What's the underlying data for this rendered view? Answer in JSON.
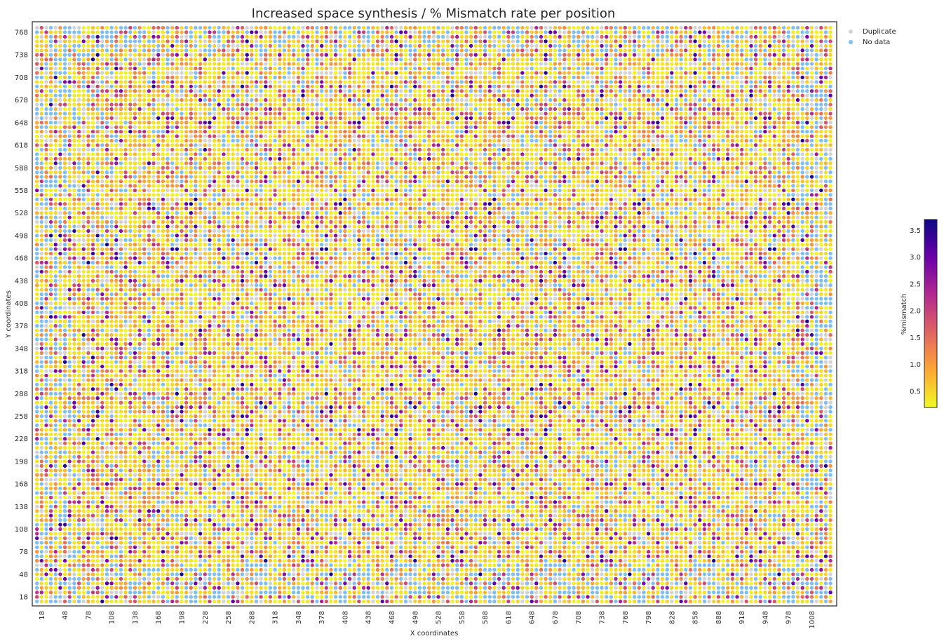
{
  "chart_data": {
    "type": "scatter",
    "title": "Increased space synthesis / % Mismatch rate per position",
    "xlabel": "X coordinates",
    "ylabel": "Y coordinates",
    "x_ticks": [
      18,
      48,
      78,
      108,
      138,
      168,
      198,
      228,
      258,
      288,
      318,
      348,
      378,
      408,
      438,
      468,
      498,
      528,
      558,
      588,
      618,
      648,
      678,
      708,
      738,
      768,
      798,
      828,
      858,
      888,
      918,
      948,
      978,
      1008
    ],
    "y_ticks": [
      18,
      48,
      78,
      108,
      138,
      168,
      198,
      228,
      258,
      288,
      318,
      348,
      378,
      408,
      438,
      468,
      498,
      528,
      558,
      588,
      618,
      648,
      678,
      708,
      738,
      768
    ],
    "xlim": [
      6,
      1040
    ],
    "ylim": [
      6,
      782
    ],
    "grid_step": 6,
    "x_range": [
      12,
      1032
    ],
    "y_range": [
      12,
      774
    ],
    "colorbar": {
      "label": "%mismatch",
      "ticks": [
        0.5,
        1.0,
        1.5,
        2.0,
        2.5,
        3.0,
        3.5
      ],
      "tick_labels": [
        "0.5",
        "1.0",
        "1.5",
        "2.0",
        "2.5",
        "3.0",
        "3.5"
      ],
      "range": [
        0.2,
        3.7
      ],
      "colormap": "plasma_r",
      "stops": [
        "#f0f921",
        "#fca636",
        "#e16462",
        "#b12a90",
        "#6a00a8",
        "#0d0887"
      ]
    },
    "legend": {
      "position": "outside-top-right",
      "entries": [
        {
          "label": "Duplicate",
          "color": "#d3d3d3"
        },
        {
          "label": "No data",
          "color": "#7fbfef"
        }
      ]
    },
    "category_colors": {
      "duplicate": "#d3d3d3",
      "no_data": "#7fbfef"
    },
    "grid": false
  }
}
